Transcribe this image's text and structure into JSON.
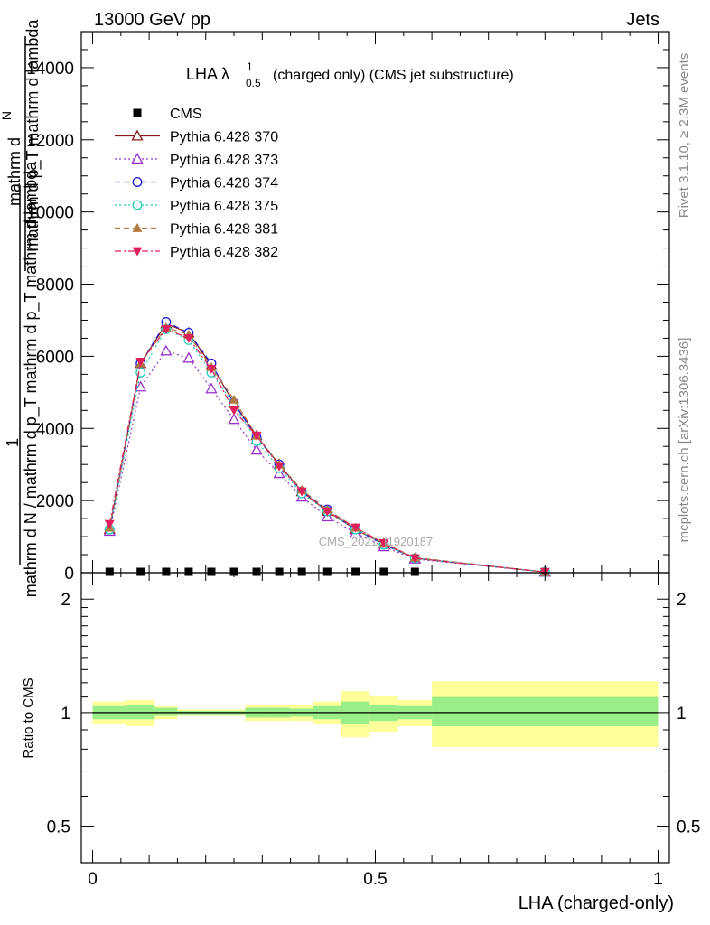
{
  "header": {
    "left": "13000 GeV pp",
    "right": "Jets"
  },
  "side": {
    "rivet": "Rivet 3.1.10, ≥ 2.3M events",
    "mcplots": "mcplots.cern.ch [arXiv:1306.3436]"
  },
  "watermark": "CMS_2021_I1920187",
  "ylabel_main": {
    "one": "1",
    "frac_top": "mathrm d",
    "frac_N": "N",
    "frac_bottom": "mathrm d p_T mathrm d lambda",
    "rest": "mathrm d N / mathrm d p_T mathrm d p_T mathrm d lambda"
  },
  "ylabel_ratio": "Ratio to CMS",
  "xlabel": "LHA (charged-only)",
  "chart_data": [
    {
      "type": "line",
      "title": "LHA λ",
      "title_sup": "1",
      "title_sub": "0.5",
      "title_rest": "(charged only) (CMS jet substructure)",
      "xlim": [
        -0.02,
        1.02
      ],
      "ylim": [
        0,
        15000
      ],
      "yticks": [
        0,
        2000,
        4000,
        6000,
        8000,
        10000,
        12000,
        14000
      ],
      "ytick_labels": [
        "0",
        "2000",
        "4000",
        "6000",
        "8000",
        "10000",
        "12000",
        "14000"
      ],
      "x": [
        0.03,
        0.085,
        0.13,
        0.17,
        0.21,
        0.25,
        0.29,
        0.33,
        0.37,
        0.415,
        0.465,
        0.515,
        0.57,
        0.8
      ],
      "series": [
        {
          "name": "CMS",
          "color": "#000000",
          "marker": "square",
          "line": "none",
          "values": [
            25,
            25,
            25,
            25,
            25,
            25,
            25,
            25,
            25,
            25,
            25,
            25,
            25,
            0
          ]
        },
        {
          "name": "Pythia 6.428 370",
          "color": "#8b1a1a",
          "marker": "triangle-open",
          "line": "solid",
          "values": [
            1200,
            5800,
            6900,
            6650,
            5750,
            4700,
            3800,
            3000,
            2250,
            1700,
            1200,
            800,
            400,
            20
          ]
        },
        {
          "name": "Pythia 6.428 373",
          "color": "#9b30d0",
          "marker": "triangle-open",
          "line": "dotted",
          "values": [
            1150,
            5150,
            6150,
            5950,
            5100,
            4250,
            3400,
            2750,
            2100,
            1550,
            1100,
            720,
            380,
            18
          ]
        },
        {
          "name": "Pythia 6.428 374",
          "color": "#1a1adb",
          "marker": "circle-open",
          "line": "dashed",
          "values": [
            1200,
            5800,
            6950,
            6650,
            5800,
            4700,
            3750,
            3000,
            2250,
            1750,
            1200,
            780,
            400,
            20
          ]
        },
        {
          "name": "Pythia 6.428 375",
          "color": "#22ccbb",
          "marker": "circle-open",
          "line": "dotted",
          "values": [
            1200,
            5550,
            6750,
            6450,
            5550,
            4650,
            3650,
            2900,
            2200,
            1700,
            1200,
            780,
            400,
            20
          ]
        },
        {
          "name": "Pythia 6.428 381",
          "color": "#b07a40",
          "marker": "triangle-filled",
          "line": "dashed",
          "values": [
            1250,
            5800,
            6800,
            6600,
            5700,
            4800,
            3800,
            3000,
            2300,
            1750,
            1250,
            820,
            420,
            20
          ]
        },
        {
          "name": "Pythia 6.428 382",
          "color": "#e0205a",
          "marker": "triangle-down-filled",
          "line": "dashdot",
          "values": [
            1350,
            5850,
            6750,
            6500,
            5650,
            4500,
            3800,
            2950,
            2250,
            1700,
            1250,
            820,
            400,
            20
          ]
        }
      ]
    },
    {
      "type": "area",
      "title": "",
      "xlim": [
        -0.02,
        1.02
      ],
      "ylim": [
        0.4,
        2.35
      ],
      "log_scale_y": true,
      "yticks": [
        0.5,
        1,
        2
      ],
      "ytick_labels": [
        "0.5",
        "1",
        "2"
      ],
      "xticks": [
        0,
        0.5,
        1
      ],
      "xtick_labels": [
        "0",
        "0.5",
        "1"
      ],
      "bins": [
        {
          "lo": 0.0,
          "hi": 0.06,
          "inner": [
            0.96,
            1.04
          ],
          "outer": [
            0.93,
            1.07
          ]
        },
        {
          "lo": 0.06,
          "hi": 0.11,
          "inner": [
            0.96,
            1.05
          ],
          "outer": [
            0.92,
            1.08
          ]
        },
        {
          "lo": 0.11,
          "hi": 0.15,
          "inner": [
            0.98,
            1.03
          ],
          "outer": [
            0.96,
            1.04
          ]
        },
        {
          "lo": 0.15,
          "hi": 0.19,
          "inner": [
            0.99,
            1.01
          ],
          "outer": [
            0.98,
            1.02
          ]
        },
        {
          "lo": 0.19,
          "hi": 0.23,
          "inner": [
            0.99,
            1.01
          ],
          "outer": [
            0.98,
            1.02
          ]
        },
        {
          "lo": 0.23,
          "hi": 0.27,
          "inner": [
            0.99,
            1.01
          ],
          "outer": [
            0.98,
            1.02
          ]
        },
        {
          "lo": 0.27,
          "hi": 0.31,
          "inner": [
            0.97,
            1.03
          ],
          "outer": [
            0.95,
            1.05
          ]
        },
        {
          "lo": 0.31,
          "hi": 0.35,
          "inner": [
            0.97,
            1.03
          ],
          "outer": [
            0.95,
            1.05
          ]
        },
        {
          "lo": 0.35,
          "hi": 0.39,
          "inner": [
            0.975,
            1.025
          ],
          "outer": [
            0.95,
            1.05
          ]
        },
        {
          "lo": 0.39,
          "hi": 0.44,
          "inner": [
            0.96,
            1.04
          ],
          "outer": [
            0.93,
            1.07
          ]
        },
        {
          "lo": 0.44,
          "hi": 0.49,
          "inner": [
            0.93,
            1.07
          ],
          "outer": [
            0.86,
            1.14
          ]
        },
        {
          "lo": 0.49,
          "hi": 0.54,
          "inner": [
            0.95,
            1.05
          ],
          "outer": [
            0.89,
            1.11
          ]
        },
        {
          "lo": 0.54,
          "hi": 0.6,
          "inner": [
            0.96,
            1.04
          ],
          "outer": [
            0.92,
            1.08
          ]
        },
        {
          "lo": 0.6,
          "hi": 1.0,
          "inner": [
            0.92,
            1.1
          ],
          "outer": [
            0.81,
            1.21
          ]
        }
      ],
      "reference": 1.0,
      "inner_color": "#99ee88",
      "outer_color": "#ffff99"
    }
  ]
}
